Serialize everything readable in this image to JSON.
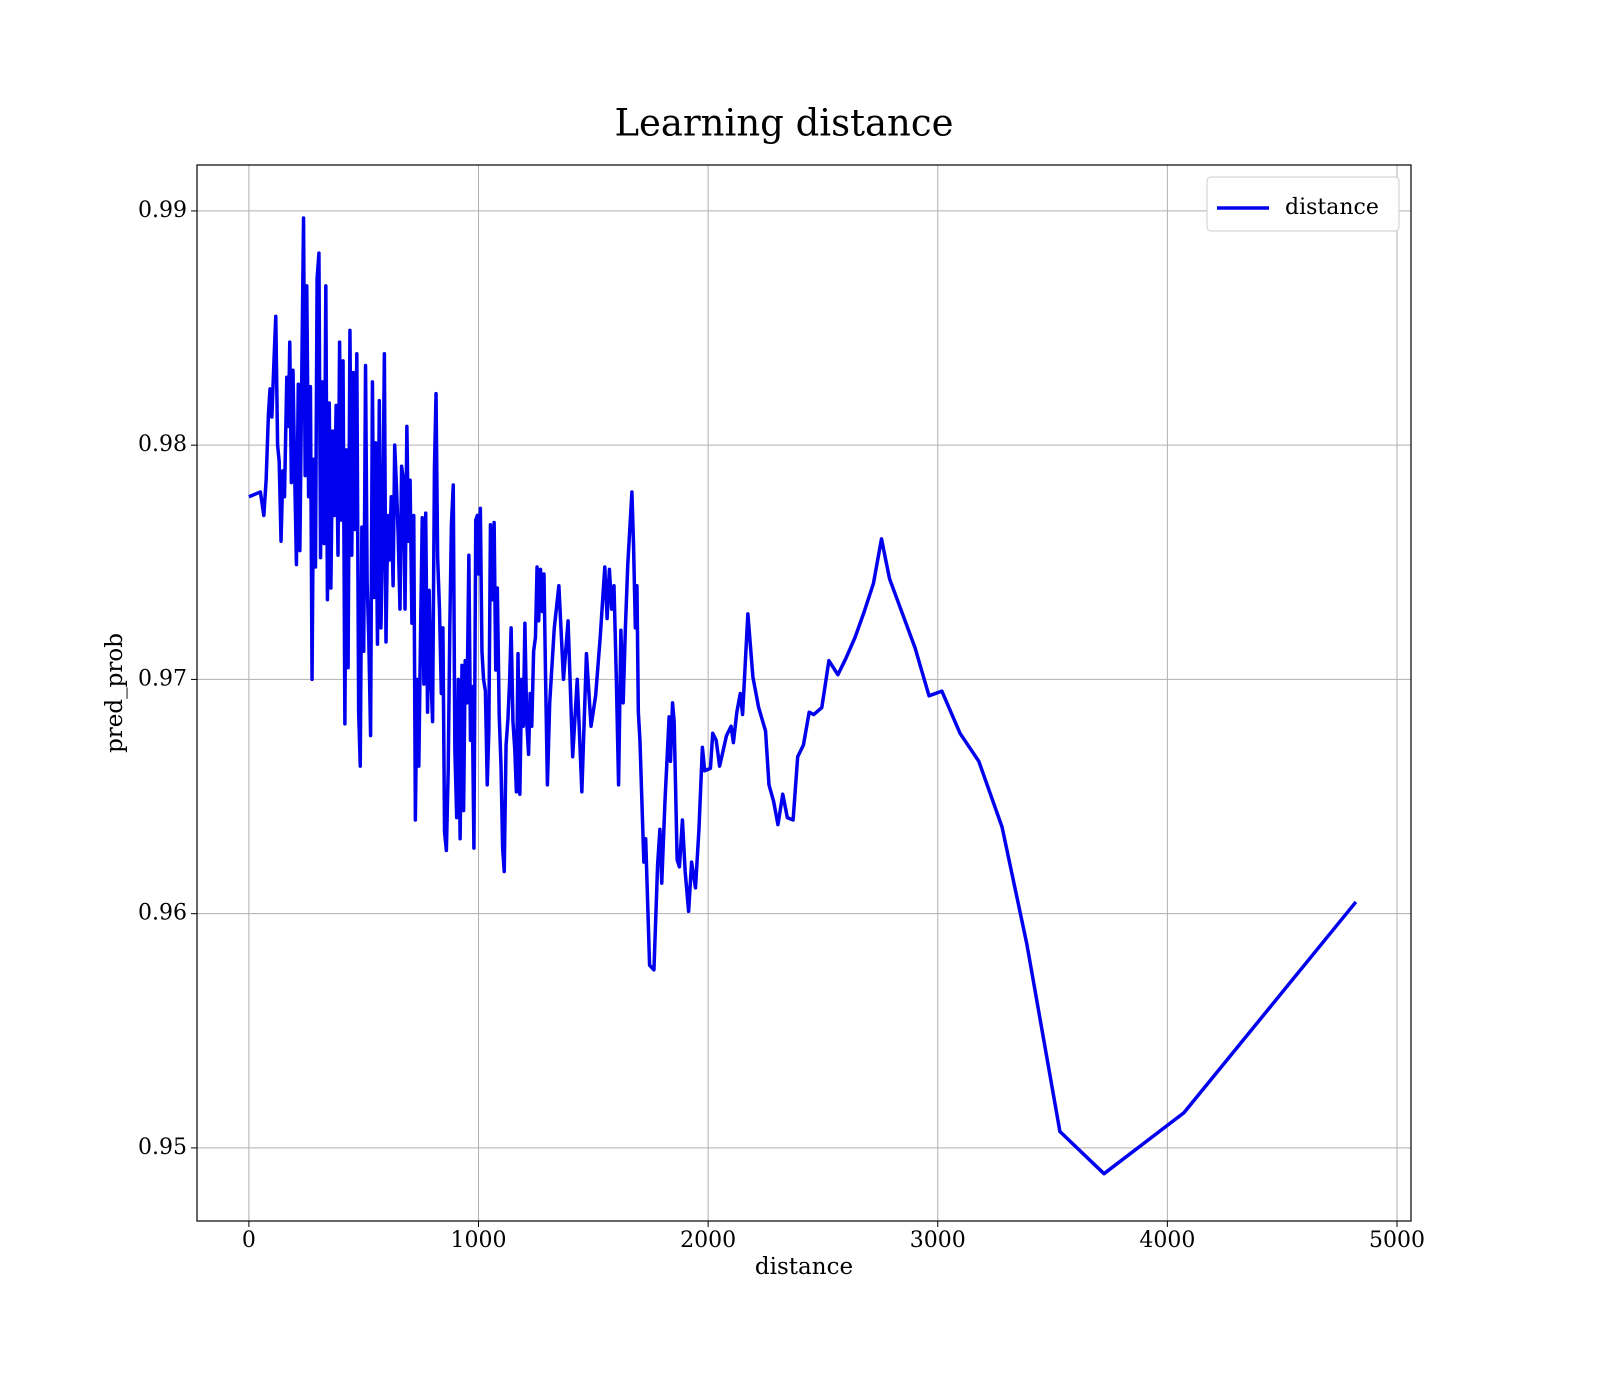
{
  "chart_data": {
    "type": "line",
    "title": "Learning distance",
    "xlabel": "distance",
    "ylabel": "pred_prob",
    "xlim": [
      -226,
      5061
    ],
    "ylim": [
      0.94688,
      0.99196
    ],
    "xticks": [
      0,
      1000,
      2000,
      3000,
      4000,
      5000
    ],
    "yticks": [
      0.95,
      0.96,
      0.97,
      0.98,
      0.99
    ],
    "grid": true,
    "legend": "upper right",
    "x": [
      0,
      50,
      65,
      75,
      85,
      92,
      100,
      110,
      117,
      125,
      132,
      140,
      148,
      155,
      165,
      172,
      178,
      185,
      192,
      200,
      207,
      215,
      222,
      230,
      238,
      245,
      252,
      260,
      268,
      275,
      282,
      290,
      297,
      305,
      312,
      320,
      328,
      335,
      342,
      350,
      357,
      365,
      372,
      380,
      388,
      395,
      402,
      410,
      418,
      425,
      432,
      440,
      448,
      455,
      462,
      470,
      478,
      485,
      492,
      500,
      508,
      515,
      522,
      530,
      538,
      545,
      552,
      560,
      568,
      575,
      582,
      590,
      597,
      605,
      612,
      620,
      628,
      635,
      642,
      650,
      658,
      665,
      672,
      680,
      688,
      695,
      702,
      710,
      718,
      725,
      732,
      740,
      748,
      755,
      762,
      770,
      778,
      785,
      792,
      800,
      808,
      815,
      822,
      830,
      838,
      845,
      852,
      860,
      868,
      875,
      882,
      890,
      897,
      905,
      912,
      920,
      928,
      935,
      942,
      950,
      958,
      965,
      972,
      980,
      988,
      995,
      1000,
      1008,
      1015,
      1022,
      1030,
      1038,
      1045,
      1052,
      1060,
      1068,
      1075,
      1082,
      1090,
      1098,
      1105,
      1112,
      1120,
      1128,
      1135,
      1142,
      1150,
      1158,
      1165,
      1172,
      1180,
      1188,
      1195,
      1202,
      1210,
      1218,
      1225,
      1232,
      1240,
      1248,
      1255,
      1262,
      1270,
      1278,
      1285,
      1292,
      1300,
      1310,
      1330,
      1350,
      1370,
      1390,
      1410,
      1430,
      1450,
      1470,
      1490,
      1510,
      1530,
      1550,
      1560,
      1570,
      1580,
      1590,
      1600,
      1610,
      1620,
      1630,
      1640,
      1650,
      1668,
      1675,
      1683,
      1690,
      1696,
      1703,
      1720,
      1728,
      1745,
      1764,
      1780,
      1790,
      1798,
      1812,
      1830,
      1836,
      1845,
      1852,
      1865,
      1875,
      1888,
      1900,
      1915,
      1928,
      1945,
      1960,
      1975,
      1985,
      2010,
      2020,
      2035,
      2050,
      2080,
      2100,
      2110,
      2125,
      2140,
      2150,
      2173,
      2195,
      2220,
      2250,
      2265,
      2285,
      2304,
      2325,
      2345,
      2370,
      2390,
      2415,
      2440,
      2460,
      2495,
      2526,
      2565,
      2600,
      2640,
      2680,
      2720,
      2755,
      2790,
      2901,
      2962,
      3018,
      3097,
      3179,
      3280,
      3388,
      3532,
      3724,
      4072,
      4821
    ],
    "series": [
      {
        "name": "distance",
        "color": "#0000ee",
        "values": [
          0.9778,
          0.978,
          0.977,
          0.9785,
          0.9813,
          0.9824,
          0.9812,
          0.9838,
          0.9855,
          0.98,
          0.9793,
          0.9759,
          0.9789,
          0.9778,
          0.9829,
          0.9808,
          0.9844,
          0.9784,
          0.9832,
          0.9785,
          0.9749,
          0.9826,
          0.9755,
          0.9828,
          0.9897,
          0.9787,
          0.9868,
          0.9778,
          0.9825,
          0.97,
          0.9794,
          0.9748,
          0.9871,
          0.9882,
          0.9752,
          0.9827,
          0.9758,
          0.9868,
          0.9734,
          0.9818,
          0.9739,
          0.9806,
          0.977,
          0.9817,
          0.9753,
          0.9844,
          0.9768,
          0.9836,
          0.9681,
          0.9798,
          0.9705,
          0.9849,
          0.9753,
          0.9831,
          0.9764,
          0.9839,
          0.9686,
          0.9663,
          0.9765,
          0.9712,
          0.9834,
          0.9741,
          0.9718,
          0.9676,
          0.9827,
          0.9735,
          0.9801,
          0.9715,
          0.9819,
          0.9722,
          0.9757,
          0.9839,
          0.9716,
          0.977,
          0.9751,
          0.9778,
          0.974,
          0.98,
          0.9784,
          0.9762,
          0.973,
          0.9791,
          0.9786,
          0.973,
          0.9808,
          0.9759,
          0.9785,
          0.9724,
          0.977,
          0.964,
          0.97,
          0.9663,
          0.9723,
          0.9769,
          0.9698,
          0.9771,
          0.9686,
          0.9738,
          0.9703,
          0.9682,
          0.979,
          0.9822,
          0.9752,
          0.973,
          0.9694,
          0.9722,
          0.9635,
          0.9627,
          0.9661,
          0.9722,
          0.9766,
          0.9783,
          0.967,
          0.9641,
          0.97,
          0.9632,
          0.9706,
          0.9644,
          0.9708,
          0.969,
          0.9753,
          0.9674,
          0.9697,
          0.9628,
          0.9768,
          0.977,
          0.9745,
          0.9773,
          0.9712,
          0.97,
          0.9695,
          0.9655,
          0.9678,
          0.9766,
          0.9734,
          0.9767,
          0.9704,
          0.9739,
          0.9685,
          0.9663,
          0.9628,
          0.9618,
          0.9672,
          0.9683,
          0.9698,
          0.9722,
          0.9682,
          0.967,
          0.9652,
          0.9711,
          0.9651,
          0.97,
          0.968,
          0.9724,
          0.9682,
          0.9668,
          0.9694,
          0.968,
          0.9712,
          0.9718,
          0.9748,
          0.9725,
          0.9747,
          0.9729,
          0.9745,
          0.9701,
          0.9655,
          0.969,
          0.9722,
          0.974,
          0.97,
          0.9725,
          0.9667,
          0.97,
          0.9652,
          0.9711,
          0.968,
          0.9693,
          0.9718,
          0.9748,
          0.9726,
          0.9747,
          0.973,
          0.974,
          0.9701,
          0.9655,
          0.9721,
          0.969,
          0.9723,
          0.9749,
          0.978,
          0.9758,
          0.9722,
          0.974,
          0.9686,
          0.9674,
          0.9622,
          0.9632,
          0.9578,
          0.9576,
          0.9621,
          0.9636,
          0.9613,
          0.9648,
          0.9684,
          0.9665,
          0.969,
          0.9682,
          0.9623,
          0.962,
          0.964,
          0.9618,
          0.9601,
          0.9622,
          0.9611,
          0.9636,
          0.9671,
          0.9661,
          0.9662,
          0.9677,
          0.9674,
          0.9663,
          0.9676,
          0.968,
          0.9673,
          0.9686,
          0.9694,
          0.9685,
          0.9728,
          0.9701,
          0.9688,
          0.9678,
          0.9655,
          0.9648,
          0.9638,
          0.9651,
          0.9641,
          0.964,
          0.9667,
          0.9672,
          0.9686,
          0.9685,
          0.9688,
          0.9708,
          0.9702,
          0.9709,
          0.9718,
          0.9729,
          0.9741,
          0.976,
          0.9743,
          0.97135,
          0.9693,
          0.9695,
          0.9677,
          0.9665,
          0.9637,
          0.9587,
          0.9507,
          0.9489,
          0.9515,
          0.9605
        ]
      }
    ]
  }
}
